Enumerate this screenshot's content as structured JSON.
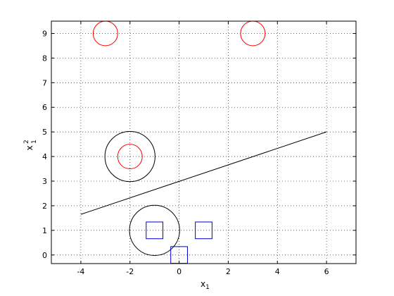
{
  "chart_data": {
    "type": "scatter",
    "xlabel": "x",
    "xlabel_sub": "1",
    "ylabel": "x",
    "ylabel_sub": "1",
    "ylabel_sup": "2",
    "xlim": [
      -5.2,
      7.2
    ],
    "ylim": [
      -0.35,
      9.5
    ],
    "xticks": [
      -4,
      -2,
      0,
      2,
      4,
      6
    ],
    "yticks": [
      0,
      1,
      2,
      3,
      4,
      5,
      6,
      7,
      8,
      9
    ],
    "grid": true,
    "line": {
      "x": [
        -4,
        6
      ],
      "y": [
        1.65,
        5.0
      ],
      "color": "#000000"
    },
    "red_circles": [
      {
        "x": -3,
        "y": 9
      },
      {
        "x": 3,
        "y": 9
      },
      {
        "x": -2,
        "y": 4
      }
    ],
    "blue_squares": [
      {
        "x": -1,
        "y": 1
      },
      {
        "x": 1,
        "y": 1
      },
      {
        "x": 0,
        "y": 0
      }
    ],
    "support_circles": [
      {
        "x": -2,
        "y": 4
      },
      {
        "x": -1,
        "y": 1
      }
    ],
    "colors": {
      "red": "#ff0000",
      "blue": "#0000cc",
      "black": "#000000",
      "grid": "#000000"
    }
  }
}
